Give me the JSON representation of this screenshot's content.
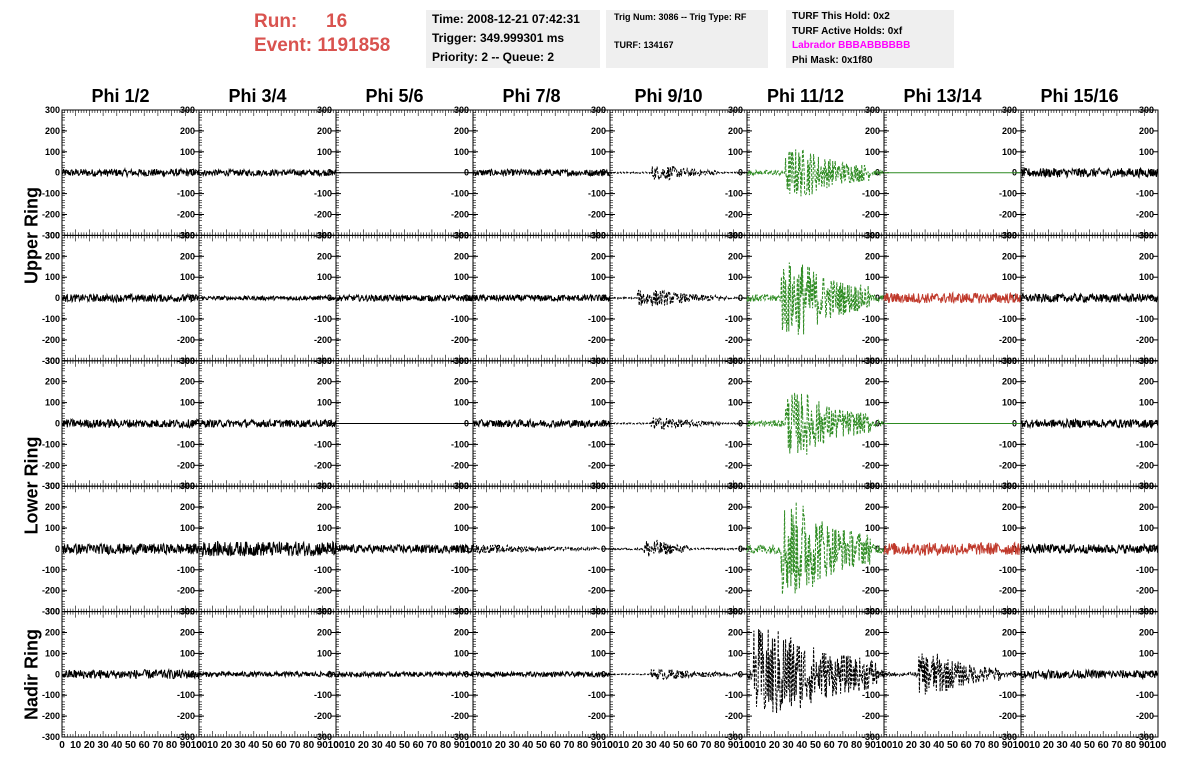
{
  "header": {
    "run_label": "Run:",
    "run_value": "16",
    "event_label": "Event:",
    "event_value": "1191858"
  },
  "info_box_1": {
    "time": "Time: 2008-12-21 07:42:31",
    "trigger": "Trigger: 349.999301 ms",
    "priority": "Priority: 2 -- Queue: 2"
  },
  "info_box_2": {
    "trig": "Trig Num: 3086 -- Trig Type: RF",
    "turf": "TURF: 134167"
  },
  "info_box_3": {
    "this_hold": "TURF This Hold: 0x2",
    "active_holds": "TURF Active Holds: 0xf",
    "labrador": "Labrador BBBABBBBBB",
    "phi_mask": "Phi Mask: 0x1f80"
  },
  "columns": [
    "Phi 1/2",
    "Phi 3/4",
    "Phi 5/6",
    "Phi 7/8",
    "Phi 9/10",
    "Phi 11/12",
    "Phi 13/14",
    "Phi 15/16"
  ],
  "ring_labels": [
    "Upper Ring",
    "Lower Ring",
    "Nadir Ring"
  ],
  "chart_data": {
    "type": "line",
    "layout": "grid of 5 rows x 8 columns of waveform panels",
    "ylim": [
      -300,
      300
    ],
    "xlim": [
      0,
      100
    ],
    "y_ticks": [
      "300",
      "200",
      "100",
      "0",
      "-100",
      "-200",
      "-300"
    ],
    "x_ticks": [
      "0",
      "10",
      "20",
      "30",
      "40",
      "50",
      "60",
      "70",
      "80",
      "90",
      "100"
    ],
    "colors": {
      "normal": "#000000",
      "triggered": "#2e8b22",
      "masked": "#c0392b"
    },
    "panels": [
      [
        {
          "a": 18,
          "s": "normal",
          "c": "#000000"
        },
        {
          "a": 15,
          "s": "normal",
          "c": "#000000"
        },
        {
          "a": 0,
          "s": "flat",
          "c": "#000000"
        },
        {
          "a": 16,
          "s": "normal",
          "c": "#000000"
        },
        {
          "a": 35,
          "s": "dashed",
          "c": "#000000",
          "burst": [
            30,
            80
          ]
        },
        {
          "a": 120,
          "s": "dashed",
          "c": "#2e8b22",
          "burst": [
            28,
            90
          ]
        },
        {
          "a": 0,
          "s": "flat",
          "c": "#2e8b22"
        },
        {
          "a": 22,
          "s": "normal",
          "c": "#000000"
        }
      ],
      [
        {
          "a": 18,
          "s": "normal",
          "c": "#000000"
        },
        {
          "a": 10,
          "s": "normal",
          "c": "#000000"
        },
        {
          "a": 15,
          "s": "normal",
          "c": "#000000"
        },
        {
          "a": 16,
          "s": "normal",
          "c": "#000000"
        },
        {
          "a": 40,
          "s": "dashed",
          "c": "#000000",
          "burst": [
            20,
            85
          ]
        },
        {
          "a": 180,
          "s": "dashed",
          "c": "#2e8b22",
          "burst": [
            25,
            90
          ]
        },
        {
          "a": 25,
          "s": "normal",
          "c": "#c0392b"
        },
        {
          "a": 20,
          "s": "normal",
          "c": "#000000"
        }
      ],
      [
        {
          "a": 20,
          "s": "normal",
          "c": "#000000"
        },
        {
          "a": 18,
          "s": "normal",
          "c": "#000000"
        },
        {
          "a": 0,
          "s": "flat",
          "c": "#000000"
        },
        {
          "a": 18,
          "s": "normal",
          "c": "#000000"
        },
        {
          "a": 30,
          "s": "dashed",
          "c": "#000000",
          "burst": [
            30,
            80
          ]
        },
        {
          "a": 150,
          "s": "dashed",
          "c": "#2e8b22",
          "burst": [
            28,
            90
          ]
        },
        {
          "a": 0,
          "s": "flat",
          "c": "#2e8b22"
        },
        {
          "a": 20,
          "s": "normal",
          "c": "#000000"
        }
      ],
      [
        {
          "a": 25,
          "s": "normal",
          "c": "#000000"
        },
        {
          "a": 35,
          "s": "normal",
          "c": "#000000"
        },
        {
          "a": 20,
          "s": "normal",
          "c": "#000000"
        },
        {
          "a": 20,
          "s": "dashed",
          "c": "#000000",
          "burst": [
            0,
            90
          ]
        },
        {
          "a": 45,
          "s": "dashed",
          "c": "#000000",
          "burst": [
            25,
            60
          ]
        },
        {
          "a": 230,
          "s": "dashed",
          "c": "#2e8b22",
          "burst": [
            25,
            90
          ]
        },
        {
          "a": 30,
          "s": "normal",
          "c": "#c0392b"
        },
        {
          "a": 22,
          "s": "normal",
          "c": "#000000"
        }
      ],
      [
        {
          "a": 22,
          "s": "normal",
          "c": "#000000"
        },
        {
          "a": 12,
          "s": "normal",
          "c": "#000000"
        },
        {
          "a": 12,
          "s": "normal",
          "c": "#000000"
        },
        {
          "a": 12,
          "s": "normal",
          "c": "#000000"
        },
        {
          "a": 25,
          "s": "dashed",
          "c": "#000000",
          "burst": [
            30,
            95
          ]
        },
        {
          "a": 220,
          "s": "dashed",
          "c": "#000000",
          "burst": [
            5,
            95
          ]
        },
        {
          "a": 100,
          "s": "dashed",
          "c": "#000000",
          "burst": [
            25,
            85
          ]
        },
        {
          "a": 20,
          "s": "normal",
          "c": "#000000"
        }
      ]
    ]
  }
}
